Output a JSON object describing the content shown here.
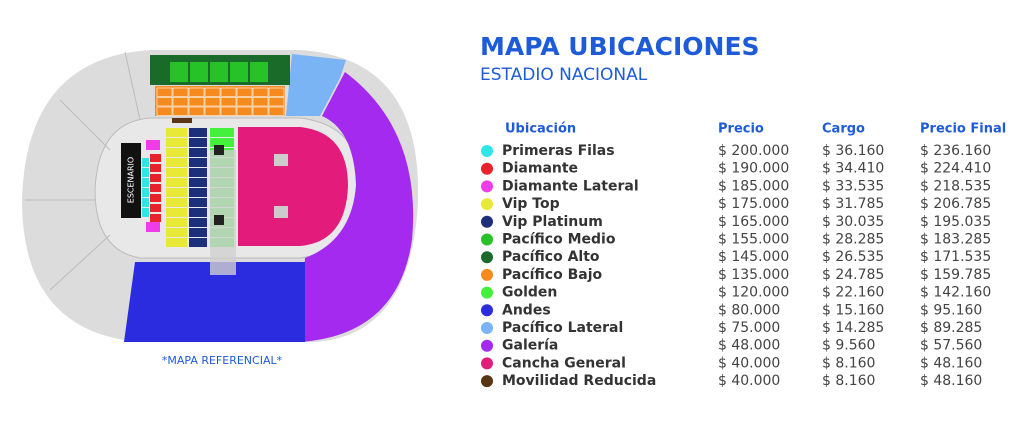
{
  "header": {
    "title": "MAPA UBICACIONES",
    "subtitle": "ESTADIO NACIONAL"
  },
  "map": {
    "stage_label": "ESCENARIO",
    "note": "*MAPA REFERENCIAL*"
  },
  "table": {
    "columns": [
      "Ubicación",
      "Precio",
      "Cargo",
      "Precio Final"
    ],
    "rows": [
      {
        "color": "#2ee6e6",
        "cells": [
          "Primeras Filas",
          "$ 200.000",
          "$ 36.160",
          "$ 236.160"
        ]
      },
      {
        "color": "#e8222b",
        "cells": [
          "Diamante",
          "$ 190.000",
          "$ 34.410",
          "$ 224.410"
        ]
      },
      {
        "color": "#f03ce8",
        "cells": [
          "Diamante Lateral",
          "$ 185.000",
          "$ 33.535",
          "$ 218.535"
        ]
      },
      {
        "color": "#e8e836",
        "cells": [
          "Vip Top",
          "$ 175.000",
          "$ 31.785",
          "$ 206.785"
        ]
      },
      {
        "color": "#1d2f7a",
        "cells": [
          "Vip Platinum",
          "$ 165.000",
          "$ 30.035",
          "$ 195.035"
        ]
      },
      {
        "color": "#27c227",
        "cells": [
          "Pacífico Medio",
          "$ 155.000",
          "$ 28.285",
          "$ 183.285"
        ]
      },
      {
        "color": "#1a6b2a",
        "cells": [
          "Pacífico Alto",
          "$ 145.000",
          "$ 26.535",
          "$ 171.535"
        ]
      },
      {
        "color": "#f58a1f",
        "cells": [
          "Pacífico Bajo",
          "$ 135.000",
          "$ 24.785",
          "$ 159.785"
        ]
      },
      {
        "color": "#44f03c",
        "cells": [
          "Golden",
          "$ 120.000",
          "$ 22.160",
          "$ 142.160"
        ]
      },
      {
        "color": "#2b2be0",
        "cells": [
          "Andes",
          "$ 80.000",
          "$ 15.160",
          "$ 95.160"
        ]
      },
      {
        "color": "#7ab4f5",
        "cells": [
          "Pacífico Lateral",
          "$ 75.000",
          "$ 14.285",
          "$ 89.285"
        ]
      },
      {
        "color": "#a42af0",
        "cells": [
          "Galería",
          "$ 48.000",
          "$ 9.560",
          "$ 57.560"
        ]
      },
      {
        "color": "#e31b7b",
        "cells": [
          "Cancha General",
          "$ 40.000",
          "$ 8.160",
          "$ 48.160"
        ]
      },
      {
        "color": "#5a3515",
        "cells": [
          "Movilidad Reducida",
          "$ 40.000",
          "$ 8.160",
          "$ 48.160"
        ]
      }
    ]
  }
}
